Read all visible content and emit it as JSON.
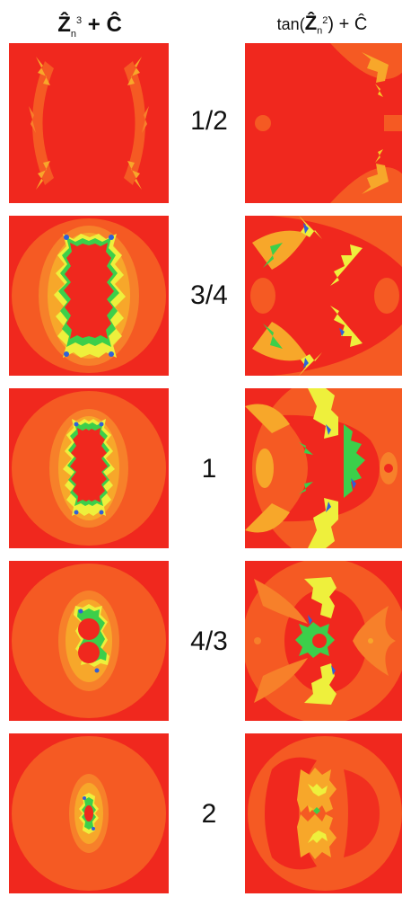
{
  "headers": {
    "left_base": "Ẑ",
    "left_sub": "n",
    "left_sup": "3",
    "left_rest": " + Ĉ",
    "right_prefix": "tan(",
    "right_base": "Ẑ",
    "right_sub": "n",
    "right_sup": "2",
    "right_rest": ") + Ĉ"
  },
  "rows": [
    {
      "label": "1/2"
    },
    {
      "label": "3/4"
    },
    {
      "label": "1"
    },
    {
      "label": "4/3"
    },
    {
      "label": "2"
    }
  ],
  "colors": {
    "background_red": "#f0281e",
    "outer_orange": "#f55a23",
    "orange_mid": "#f7802a",
    "yellow": "#f5c828",
    "bright_yellow": "#eef03c",
    "green": "#3ccf4a",
    "blue": "#3060d8"
  }
}
